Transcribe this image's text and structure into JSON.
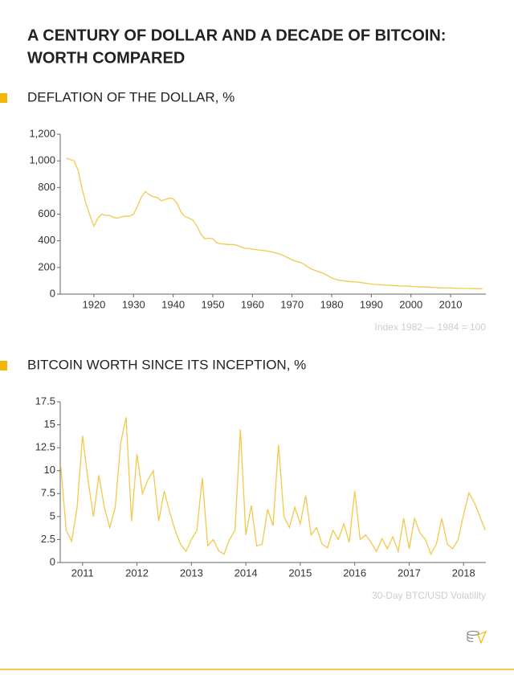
{
  "title": "A CENTURY OF DOLLAR AND A DECADE OF BITCOIN: WORTH COMPARED",
  "chart_data": [
    {
      "type": "line",
      "title": "DEFLATION OF THE DOLLAR, %",
      "note": "Index 1982 — 1984 = 100",
      "color": "#f2c94c",
      "grid": false,
      "x": [
        1913,
        1914,
        1915,
        1916,
        1917,
        1918,
        1919,
        1920,
        1921,
        1922,
        1923,
        1924,
        1925,
        1926,
        1927,
        1928,
        1929,
        1930,
        1931,
        1932,
        1933,
        1934,
        1935,
        1936,
        1937,
        1938,
        1939,
        1940,
        1941,
        1942,
        1943,
        1944,
        1945,
        1946,
        1947,
        1948,
        1949,
        1950,
        1951,
        1952,
        1953,
        1954,
        1955,
        1956,
        1957,
        1958,
        1959,
        1960,
        1961,
        1962,
        1963,
        1964,
        1965,
        1966,
        1967,
        1968,
        1969,
        1970,
        1971,
        1972,
        1973,
        1974,
        1975,
        1976,
        1977,
        1978,
        1979,
        1980,
        1981,
        1982,
        1983,
        1984,
        1985,
        1986,
        1987,
        1988,
        1989,
        1990,
        1991,
        1992,
        1993,
        1994,
        1995,
        1996,
        1997,
        1998,
        1999,
        2000,
        2001,
        2002,
        2003,
        2004,
        2005,
        2006,
        2007,
        2008,
        2009,
        2010,
        2011,
        2012,
        2013,
        2014,
        2015,
        2016,
        2017,
        2018
      ],
      "values": [
        1020,
        1010,
        1000,
        930,
        790,
        680,
        590,
        510,
        570,
        600,
        590,
        590,
        575,
        570,
        580,
        585,
        585,
        600,
        660,
        730,
        770,
        745,
        730,
        725,
        700,
        710,
        720,
        715,
        680,
        615,
        580,
        570,
        555,
        510,
        450,
        415,
        420,
        415,
        385,
        378,
        375,
        372,
        373,
        367,
        355,
        345,
        343,
        337,
        333,
        330,
        326,
        322,
        316,
        308,
        299,
        287,
        272,
        257,
        246,
        238,
        225,
        203,
        186,
        176,
        165,
        154,
        138,
        121,
        110,
        104,
        100,
        96,
        93,
        91,
        88,
        84,
        80,
        76,
        73,
        71,
        69,
        67,
        65,
        63,
        62,
        61,
        60,
        58,
        56,
        55,
        54,
        53,
        51,
        49,
        48,
        46,
        46,
        46,
        44,
        43,
        43,
        42,
        42,
        41,
        41,
        40
      ],
      "xlim": [
        1911.5,
        2018.9
      ],
      "ylim": [
        0,
        1200
      ],
      "xticks": [
        1920,
        1930,
        1940,
        1950,
        1960,
        1970,
        1980,
        1990,
        2000,
        2010
      ],
      "yticks": [
        0,
        200,
        400,
        600,
        800,
        {
          "value": 1000,
          "label": "1,000"
        },
        {
          "value": 1200,
          "label": "1,200"
        }
      ]
    },
    {
      "type": "line",
      "title": "BITCOIN WORTH SINCE ITS INCEPTION, %",
      "note": "30-Day BTC/USD Volatility",
      "color": "#f2c94c",
      "grid": false,
      "x": [
        2010.6,
        2010.7,
        2010.8,
        2010.9,
        2011.0,
        2011.1,
        2011.2,
        2011.3,
        2011.4,
        2011.5,
        2011.6,
        2011.7,
        2011.8,
        2011.9,
        2012.0,
        2012.1,
        2012.2,
        2012.3,
        2012.4,
        2012.5,
        2012.6,
        2012.7,
        2012.8,
        2012.9,
        2013.0,
        2013.1,
        2013.2,
        2013.3,
        2013.4,
        2013.5,
        2013.6,
        2013.7,
        2013.8,
        2013.9,
        2014.0,
        2014.1,
        2014.2,
        2014.3,
        2014.4,
        2014.5,
        2014.6,
        2014.7,
        2014.8,
        2014.9,
        2015.0,
        2015.1,
        2015.2,
        2015.3,
        2015.4,
        2015.5,
        2015.6,
        2015.7,
        2015.8,
        2015.9,
        2016.0,
        2016.1,
        2016.2,
        2016.3,
        2016.4,
        2016.5,
        2016.6,
        2016.7,
        2016.8,
        2016.9,
        2017.0,
        2017.1,
        2017.2,
        2017.3,
        2017.4,
        2017.5,
        2017.6,
        2017.7,
        2017.8,
        2017.9,
        2018.0,
        2018.1,
        2018.2,
        2018.3,
        2018.4
      ],
      "values": [
        10.5,
        3.5,
        2.3,
        6,
        13.8,
        9,
        5,
        9.5,
        6,
        3.8,
        6,
        13,
        15.8,
        4.5,
        11.8,
        7.5,
        9,
        10,
        4.5,
        7.8,
        5.5,
        3.5,
        2,
        1.2,
        2.5,
        3.5,
        9.2,
        1.8,
        2.5,
        1.3,
        0.9,
        2.5,
        3.5,
        14.5,
        3,
        6.2,
        1.8,
        2,
        5.8,
        4,
        12.8,
        5,
        3.8,
        6,
        4.2,
        7.3,
        3,
        3.8,
        2,
        1.6,
        3.5,
        2.5,
        4.2,
        2.2,
        7.8,
        2.5,
        3,
        2.2,
        1.2,
        2.6,
        1.5,
        2.8,
        1.2,
        4.8,
        1.5,
        4.8,
        3.2,
        2.5,
        0.9,
        2,
        4.8,
        2,
        1.5,
        2.5,
        5.2,
        7.6,
        6.5,
        5,
        3.5
      ],
      "xlim": [
        2010.59,
        2018.41
      ],
      "ylim": [
        0,
        17.5
      ],
      "xticks": [
        2011,
        2012,
        2013,
        2014,
        2015,
        2016,
        2017,
        2018
      ],
      "yticks": [
        0,
        2.5,
        5,
        7.5,
        10,
        12.5,
        15,
        17.5
      ]
    }
  ]
}
